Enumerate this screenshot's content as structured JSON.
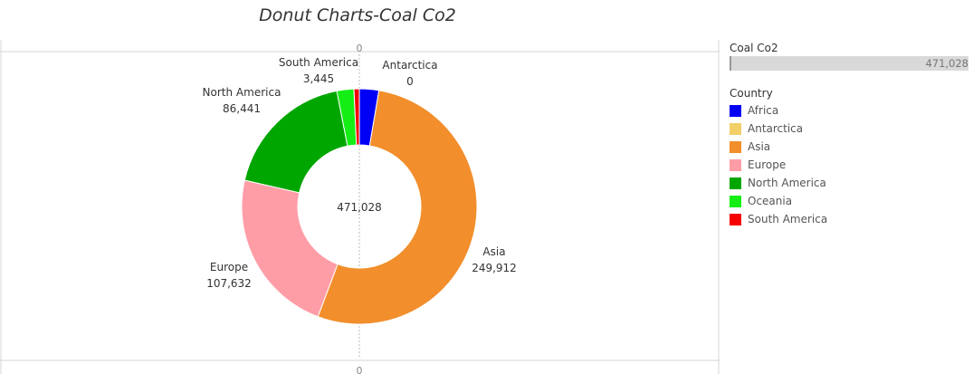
{
  "title": "Donut Charts-Coal Co2",
  "axis_zero_top": "0",
  "axis_zero_bottom": "0",
  "legend": {
    "measure_title": "Coal Co2",
    "measure_value": "471,028",
    "color_title": "Country",
    "items": [
      {
        "label": "Africa",
        "color": "#0000f5"
      },
      {
        "label": "Antarctica",
        "color": "#f2cf68"
      },
      {
        "label": "Asia",
        "color": "#f28e2b"
      },
      {
        "label": "Europe",
        "color": "#ff9da7"
      },
      {
        "label": "North America",
        "color": "#00a600"
      },
      {
        "label": "Oceania",
        "color": "#15ee15"
      },
      {
        "label": "South America",
        "color": "#f40000"
      }
    ]
  },
  "chart_data": {
    "type": "pie",
    "variant": "donut",
    "title": "Donut Charts-Coal Co2",
    "center_label": "471,028",
    "total": 471028,
    "slices": [
      {
        "label": "Africa",
        "value": 12590,
        "value_label": "",
        "color": "#0000f5"
      },
      {
        "label": "Asia",
        "value": 249912,
        "value_label": "249,912",
        "color": "#f28e2b"
      },
      {
        "label": "Europe",
        "value": 107632,
        "value_label": "107,632",
        "color": "#ff9da7"
      },
      {
        "label": "North America",
        "value": 86441,
        "value_label": "86,441",
        "color": "#00a600"
      },
      {
        "label": "Oceania",
        "value": 11008,
        "value_label": "",
        "color": "#15ee15"
      },
      {
        "label": "South America",
        "value": 3445,
        "value_label": "3,445",
        "color": "#f40000"
      },
      {
        "label": "Antarctica",
        "value": 0,
        "value_label": "0",
        "color": "#f2cf68"
      }
    ],
    "legend_position": "right"
  }
}
